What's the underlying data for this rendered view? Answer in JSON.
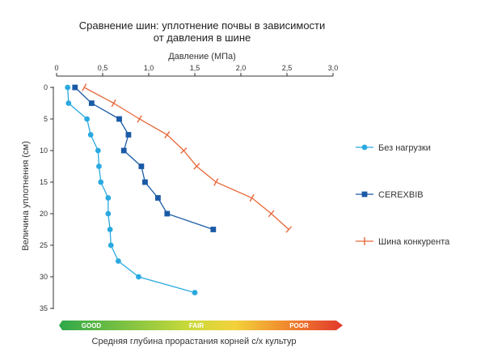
{
  "colors": {
    "series_no_load": "#2aa9e0",
    "series_cerexbib": "#1a5aa6",
    "series_competitor": "#e8673a",
    "axis": "#333333",
    "scale_green": "#2ea84a",
    "scale_yellow": "#f3d23b",
    "scale_red": "#e2372c"
  },
  "quality_scale": {
    "good": "GOOD",
    "fair": "FAIR",
    "poor": "POOR",
    "caption": "Средняя глубина прорастания корней с/х культур"
  },
  "chart_data": {
    "type": "line",
    "title": "Сравнение шин: уплотнение почвы в зависимости",
    "subtitle": "от давления в шине",
    "xlabel": "Давление (МПа)",
    "ylabel": "Величина уплотнения (см)",
    "xlim": [
      0,
      3.0
    ],
    "ylim": [
      0,
      35
    ],
    "y_inverted": true,
    "x_axis_position": "top",
    "x_ticks": [
      "0",
      "0,5",
      "1,0",
      "1,5",
      "2,0",
      "2,5",
      "3,0"
    ],
    "y_ticks": [
      "0",
      "5",
      "10",
      "15",
      "20",
      "25",
      "30",
      "35"
    ],
    "grid": false,
    "legend_position": "right",
    "series": [
      {
        "name": "Без нагрузки",
        "marker": "circle",
        "points": [
          {
            "x": 0.12,
            "y": 0
          },
          {
            "x": 0.13,
            "y": 2.5
          },
          {
            "x": 0.33,
            "y": 5
          },
          {
            "x": 0.37,
            "y": 7.5
          },
          {
            "x": 0.45,
            "y": 10
          },
          {
            "x": 0.46,
            "y": 12.5
          },
          {
            "x": 0.48,
            "y": 15
          },
          {
            "x": 0.56,
            "y": 17.5
          },
          {
            "x": 0.56,
            "y": 20
          },
          {
            "x": 0.58,
            "y": 22.5
          },
          {
            "x": 0.59,
            "y": 25
          },
          {
            "x": 0.67,
            "y": 27.5
          },
          {
            "x": 0.89,
            "y": 30
          },
          {
            "x": 1.5,
            "y": 32.5
          }
        ]
      },
      {
        "name": "CEREXBIB",
        "marker": "square",
        "points": [
          {
            "x": 0.2,
            "y": 0
          },
          {
            "x": 0.38,
            "y": 2.5
          },
          {
            "x": 0.68,
            "y": 5
          },
          {
            "x": 0.78,
            "y": 7.5
          },
          {
            "x": 0.73,
            "y": 10
          },
          {
            "x": 0.92,
            "y": 12.5
          },
          {
            "x": 0.96,
            "y": 15
          },
          {
            "x": 1.1,
            "y": 17.5
          },
          {
            "x": 1.2,
            "y": 20
          },
          {
            "x": 1.7,
            "y": 22.5
          }
        ]
      },
      {
        "name": "Шина конкурента",
        "marker": "tick",
        "points": [
          {
            "x": 0.3,
            "y": 0
          },
          {
            "x": 0.62,
            "y": 2.5
          },
          {
            "x": 0.9,
            "y": 5
          },
          {
            "x": 1.2,
            "y": 7.5
          },
          {
            "x": 1.38,
            "y": 10
          },
          {
            "x": 1.52,
            "y": 12.5
          },
          {
            "x": 1.73,
            "y": 15
          },
          {
            "x": 2.12,
            "y": 17.5
          },
          {
            "x": 2.33,
            "y": 20
          },
          {
            "x": 2.52,
            "y": 22.5
          }
        ]
      }
    ]
  }
}
